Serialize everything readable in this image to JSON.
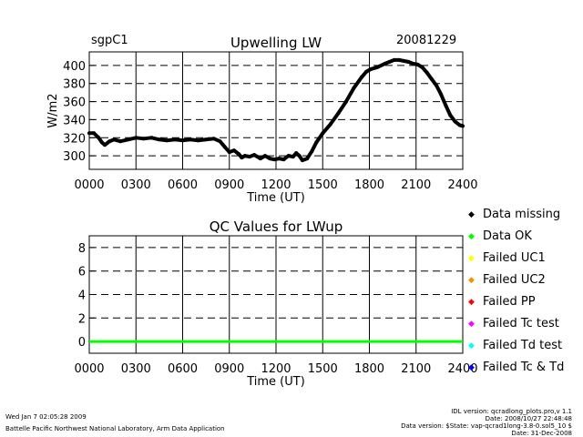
{
  "header": {
    "site": "sgpC1",
    "date": "20081229"
  },
  "chart_data": [
    {
      "type": "line",
      "title": "Upwelling LW",
      "xlabel": "Time (UT)",
      "ylabel": "W/m2",
      "xlim": [
        0,
        24
      ],
      "ylim": [
        285,
        415
      ],
      "x_tick_labels": [
        "0000",
        "0300",
        "0600",
        "0900",
        "1200",
        "1500",
        "1800",
        "2100",
        "2400"
      ],
      "y_ticks": [
        300,
        320,
        340,
        360,
        380,
        400
      ],
      "grid": true,
      "series": [
        {
          "color": "#000000",
          "x": [
            0.0,
            0.3,
            0.6,
            0.8,
            1.0,
            1.3,
            1.6,
            2.0,
            2.5,
            3.0,
            3.5,
            4.0,
            4.5,
            5.0,
            5.5,
            6.0,
            6.5,
            7.0,
            7.5,
            8.0,
            8.4,
            8.7,
            9.0,
            9.3,
            9.6,
            9.8,
            10.0,
            10.3,
            10.6,
            11.0,
            11.3,
            11.6,
            11.9,
            12.2,
            12.5,
            12.8,
            13.1,
            13.3,
            13.5,
            13.7,
            14.0,
            14.3,
            14.6,
            15.0,
            15.5,
            16.0,
            16.5,
            17.0,
            17.5,
            17.8,
            18.1,
            18.5,
            19.0,
            19.3,
            19.6,
            19.9,
            20.2,
            20.5,
            20.8,
            21.1,
            21.4,
            21.7,
            22.0,
            22.3,
            22.6,
            22.9,
            23.2,
            23.5,
            23.8,
            24.0
          ],
          "y": [
            325,
            325,
            320,
            315,
            312,
            316,
            318,
            316,
            318,
            320,
            319,
            320,
            318,
            317,
            318,
            317,
            318,
            317,
            318,
            319,
            316,
            310,
            304,
            306,
            302,
            298,
            300,
            299,
            301,
            297,
            300,
            297,
            296,
            297,
            296,
            300,
            299,
            303,
            300,
            295,
            297,
            305,
            315,
            325,
            335,
            347,
            360,
            375,
            387,
            393,
            396,
            398,
            402,
            404,
            406,
            406,
            405,
            404,
            402,
            401,
            398,
            392,
            385,
            378,
            368,
            356,
            345,
            338,
            334,
            333
          ]
        }
      ]
    },
    {
      "type": "line",
      "title": "QC Values for LWup",
      "xlabel": "Time (UT)",
      "xlim": [
        0,
        24
      ],
      "ylim": [
        -1,
        9
      ],
      "x_tick_labels": [
        "0000",
        "0300",
        "0600",
        "0900",
        "1200",
        "1500",
        "1800",
        "2100",
        "2400"
      ],
      "y_ticks": [
        0,
        2,
        4,
        6,
        8
      ],
      "grid": true,
      "series": [
        {
          "color": "#00ff00",
          "x": [
            0,
            24
          ],
          "y": [
            0,
            0
          ]
        }
      ]
    }
  ],
  "legend": [
    {
      "label": "Data missing",
      "color": "#000000"
    },
    {
      "label": "Data OK",
      "color": "#00ff00"
    },
    {
      "label": "Failed UC1",
      "color": "#ffff00"
    },
    {
      "label": "Failed UC2",
      "color": "#ff8c00"
    },
    {
      "label": "Failed PP",
      "color": "#ff0000"
    },
    {
      "label": "Failed Tc test",
      "color": "#ff00ff"
    },
    {
      "label": "Failed Td test",
      "color": "#00ffff"
    },
    {
      "label": "Failed Tc & Td",
      "color": "#0000ff"
    }
  ],
  "footer": {
    "timestamp": "Wed Jan  7 02:05:28 2009",
    "lab": "Battelle Pacific Northwest National Laboratory, Arm Data Application",
    "idl_version": "IDL version: qcradlong_plots.pro,v 1.1",
    "idl_date": "Date: 2008/10/27 22:48:48",
    "data_version": "Data version: $State: vap-qcrad1long-3.8-0.sol5_10 $",
    "data_date": "Date: 31-Dec-2008"
  }
}
